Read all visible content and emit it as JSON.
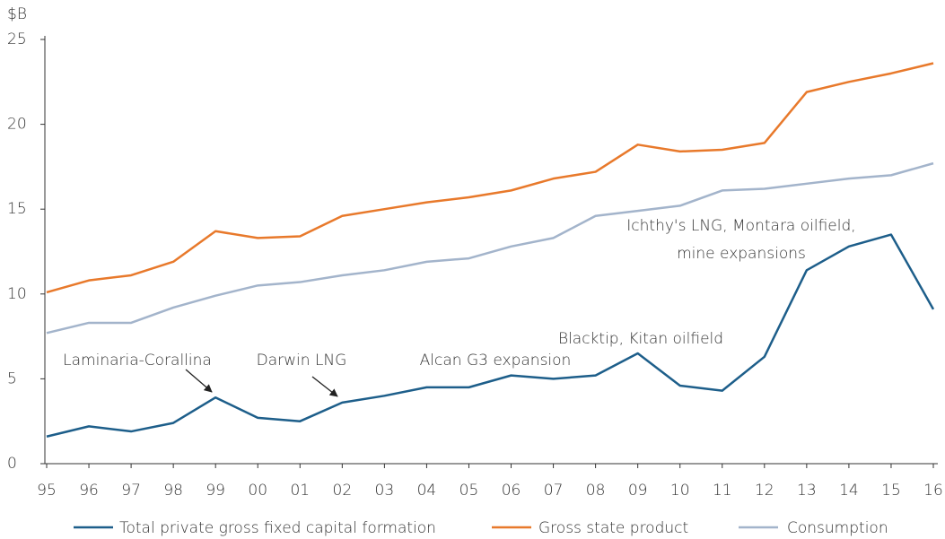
{
  "chart_data": {
    "type": "line",
    "y_axis_label": "$B",
    "categories": [
      "95",
      "96",
      "97",
      "98",
      "99",
      "00",
      "01",
      "02",
      "03",
      "04",
      "05",
      "06",
      "07",
      "08",
      "09",
      "10",
      "11",
      "12",
      "13",
      "14",
      "15",
      "16"
    ],
    "series": [
      {
        "name": "Total private gross fixed capital formation",
        "color": "#1d5e8a",
        "values": [
          1.6,
          2.2,
          1.9,
          2.4,
          3.9,
          2.7,
          2.5,
          3.6,
          4.0,
          4.5,
          4.5,
          5.2,
          5.0,
          5.2,
          6.5,
          4.6,
          4.3,
          6.3,
          11.4,
          12.8,
          13.5,
          9.1
        ]
      },
      {
        "name": "Gross state product",
        "color": "#e8792b",
        "values": [
          10.1,
          10.8,
          11.1,
          11.9,
          13.7,
          13.3,
          13.4,
          14.6,
          15.0,
          15.4,
          15.7,
          16.1,
          16.8,
          17.2,
          18.8,
          18.4,
          18.5,
          18.9,
          21.9,
          22.5,
          23.0,
          23.6
        ]
      },
      {
        "name": "Consumption",
        "color": "#a3b4cb",
        "values": [
          7.7,
          8.3,
          8.3,
          9.2,
          9.9,
          10.5,
          10.7,
          11.1,
          11.4,
          11.9,
          12.1,
          12.8,
          13.3,
          14.6,
          14.9,
          15.2,
          16.1,
          16.2,
          16.5,
          16.8,
          17.0,
          17.7
        ]
      }
    ],
    "ylim": [
      0,
      25
    ],
    "yticks": [
      0,
      5,
      10,
      15,
      20,
      25
    ],
    "grid": false,
    "annotations": [
      "Laminaria-Corallina",
      "Darwin LNG",
      "Alcan G3 expansion",
      "Blacktip, Kitan oilfield",
      "Ichthy's LNG, Montara oilfield,",
      "mine expansions"
    ]
  }
}
